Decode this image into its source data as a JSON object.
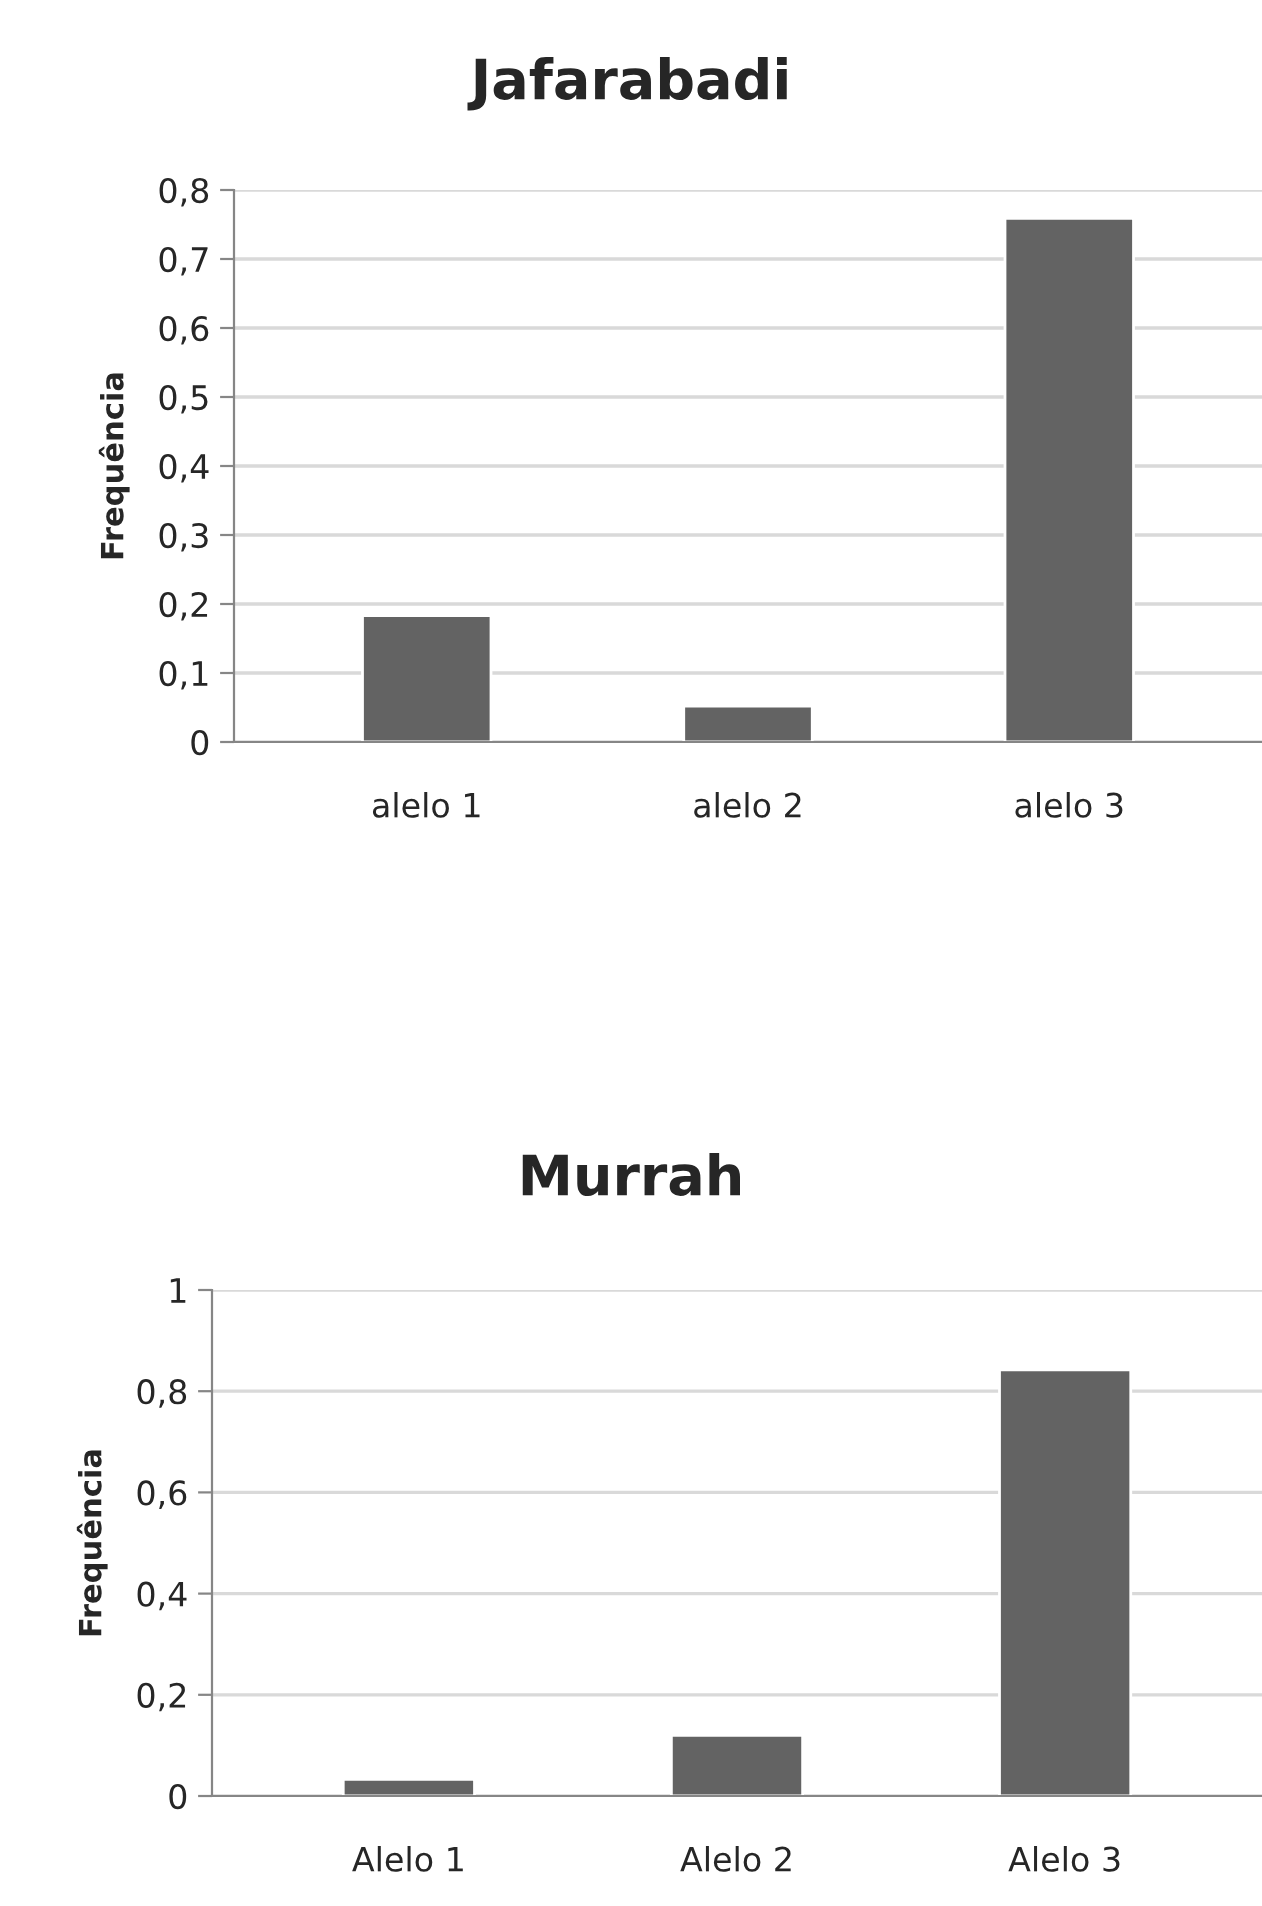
{
  "chart_data": [
    {
      "type": "bar",
      "title": "Jafarabadi",
      "ylabel": "Frequência",
      "categories": [
        "alelo 1",
        "alelo 2",
        "alelo 3"
      ],
      "values": [
        0.183,
        0.052,
        0.759
      ],
      "color": "#636363",
      "ylim": [
        0,
        0.8
      ],
      "yticks": [
        {
          "value": 0,
          "label": "0"
        },
        {
          "value": 0.1,
          "label": "0,1"
        },
        {
          "value": 0.2,
          "label": "0,2"
        },
        {
          "value": 0.3,
          "label": "0,3"
        },
        {
          "value": 0.4,
          "label": "0,4"
        },
        {
          "value": 0.5,
          "label": "0,5"
        },
        {
          "value": 0.6,
          "label": "0,6"
        },
        {
          "value": 0.7,
          "label": "0,7"
        },
        {
          "value": 0.8,
          "label": "0,8"
        }
      ],
      "grid": "y",
      "legend": false
    },
    {
      "type": "bar",
      "title": "Murrah",
      "ylabel": "Frequência",
      "categories": [
        "Alelo 1",
        "Alelo 2",
        "Alelo 3"
      ],
      "values": [
        0.033,
        0.12,
        0.842
      ],
      "color": "#636363",
      "ylim": [
        0,
        1
      ],
      "yticks": [
        {
          "value": 0,
          "label": "0"
        },
        {
          "value": 0.2,
          "label": "0,2"
        },
        {
          "value": 0.4,
          "label": "0,4"
        },
        {
          "value": 0.6,
          "label": "0,6"
        },
        {
          "value": 0.8,
          "label": "0,8"
        },
        {
          "value": 1,
          "label": "1"
        }
      ],
      "grid": "y",
      "legend": false
    }
  ]
}
